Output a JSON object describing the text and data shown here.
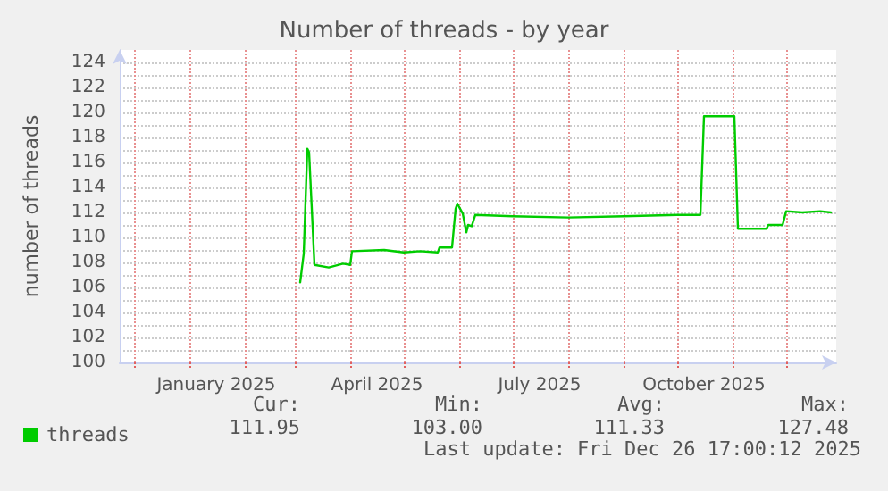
{
  "chart_data": {
    "type": "line",
    "title": "Number of threads - by year",
    "ylabel": "number of threads",
    "x": [
      "2025-03-04",
      "2025-03-06",
      "2025-03-08",
      "2025-03-09",
      "2025-03-12",
      "2025-03-20",
      "2025-03-28",
      "2025-04-01",
      "2025-04-02",
      "2025-04-20",
      "2025-05-01",
      "2025-05-10",
      "2025-05-20",
      "2025-05-21",
      "2025-05-28",
      "2025-05-30",
      "2025-05-31",
      "2025-06-03",
      "2025-06-05",
      "2025-06-06",
      "2025-06-08",
      "2025-06-10",
      "2025-07-01",
      "2025-08-01",
      "2025-09-01",
      "2025-10-01",
      "2025-10-14",
      "2025-10-16",
      "2025-11-02",
      "2025-11-04",
      "2025-11-20",
      "2025-11-21",
      "2025-11-29",
      "2025-12-01",
      "2025-12-10",
      "2025-12-20",
      "2025-12-26"
    ],
    "series": [
      {
        "name": "threads",
        "color": "#00cc00",
        "values": [
          106.4,
          108.7,
          117.1,
          116.8,
          107.8,
          107.6,
          107.9,
          107.8,
          108.9,
          109.0,
          108.8,
          108.9,
          108.8,
          109.2,
          109.2,
          112.3,
          112.7,
          111.9,
          110.4,
          111.0,
          110.9,
          111.8,
          111.7,
          111.6,
          111.7,
          111.8,
          111.8,
          119.7,
          119.7,
          110.7,
          110.7,
          111.0,
          111.0,
          112.1,
          112.0,
          112.1,
          112.0
        ]
      }
    ],
    "xlim": [
      "2024-11-23",
      "2025-12-29"
    ],
    "xticks": [
      {
        "value": "2024-12-01",
        "label": null
      },
      {
        "value": "2025-01-01",
        "label": null
      },
      {
        "value": "2025-01-16",
        "label": "January 2025"
      },
      {
        "value": "2025-02-01",
        "label": null
      },
      {
        "value": "2025-03-01",
        "label": null
      },
      {
        "value": "2025-04-01",
        "label": null
      },
      {
        "value": "2025-04-16",
        "label": "April 2025"
      },
      {
        "value": "2025-05-01",
        "label": null
      },
      {
        "value": "2025-06-01",
        "label": null
      },
      {
        "value": "2025-07-01",
        "label": null
      },
      {
        "value": "2025-07-16",
        "label": "July 2025"
      },
      {
        "value": "2025-08-01",
        "label": null
      },
      {
        "value": "2025-09-01",
        "label": null
      },
      {
        "value": "2025-10-01",
        "label": null
      },
      {
        "value": "2025-10-16",
        "label": "October 2025"
      },
      {
        "value": "2025-11-01",
        "label": null
      },
      {
        "value": "2025-12-01",
        "label": null
      }
    ],
    "ylim": [
      100,
      125
    ],
    "yticks": [
      100,
      {
        "value": 101,
        "label": null
      },
      102,
      {
        "value": 103,
        "label": null
      },
      104,
      {
        "value": 105,
        "label": null
      },
      106,
      {
        "value": 107,
        "label": null
      },
      108,
      {
        "value": 109,
        "label": null
      },
      110,
      {
        "value": 111,
        "label": null
      },
      112,
      {
        "value": 113,
        "label": null
      },
      114,
      {
        "value": 115,
        "label": null
      },
      116,
      {
        "value": 117,
        "label": null
      },
      118,
      {
        "value": 119,
        "label": null
      },
      120,
      {
        "value": 121,
        "label": null
      },
      122,
      {
        "value": 123,
        "label": null
      },
      124
    ],
    "grid": true,
    "legend": "bottom left",
    "marker": "none",
    "line_style": "solid",
    "annotations": [
      "Cur:",
      "Min:",
      "Avg:",
      "Max:",
      "111.95",
      "103.00",
      "111.33",
      "127.48",
      "Last update: Fri Dec 26 17:00:12 2025"
    ]
  }
}
